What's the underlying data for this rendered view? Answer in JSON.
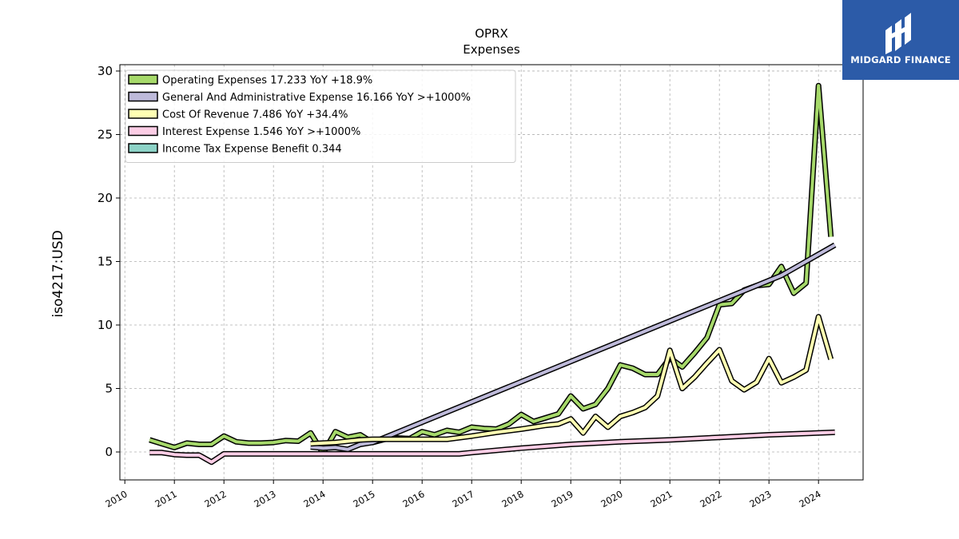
{
  "chart_data": {
    "type": "line",
    "title": "OPRX",
    "subtitle": "Expenses",
    "xlabel": "",
    "ylabel": "iso4217:USD",
    "xlim": [
      2009.9,
      2024.9
    ],
    "ylim": [
      -2.2,
      30.5
    ],
    "yticks": [
      0,
      5,
      10,
      15,
      20,
      25,
      30
    ],
    "xticks": [
      2010,
      2011,
      2012,
      2013,
      2014,
      2015,
      2016,
      2017,
      2018,
      2019,
      2020,
      2021,
      2022,
      2023,
      2024
    ],
    "grid": true,
    "legend_position": "upper-left",
    "series": [
      {
        "name": "Operating Expenses",
        "legend": "Operating Expenses  17.233 YoY +18.9%",
        "color": "#a6d96a",
        "points": [
          [
            2010.5,
            0.95
          ],
          [
            2010.75,
            0.65
          ],
          [
            2011.0,
            0.35
          ],
          [
            2011.25,
            0.7
          ],
          [
            2011.5,
            0.6
          ],
          [
            2011.75,
            0.6
          ],
          [
            2012.0,
            1.25
          ],
          [
            2012.25,
            0.8
          ],
          [
            2012.5,
            0.7
          ],
          [
            2012.75,
            0.7
          ],
          [
            2013.0,
            0.75
          ],
          [
            2013.25,
            0.9
          ],
          [
            2013.5,
            0.85
          ],
          [
            2013.75,
            1.5
          ],
          [
            2014.0,
            -0.1
          ],
          [
            2014.25,
            1.6
          ],
          [
            2014.5,
            1.15
          ],
          [
            2014.75,
            1.35
          ],
          [
            2015.0,
            0.75
          ],
          [
            2015.25,
            1.0
          ],
          [
            2015.5,
            1.1
          ],
          [
            2015.75,
            1.05
          ],
          [
            2016.0,
            1.6
          ],
          [
            2016.25,
            1.35
          ],
          [
            2016.5,
            1.7
          ],
          [
            2016.75,
            1.55
          ],
          [
            2017.0,
            1.95
          ],
          [
            2017.25,
            1.85
          ],
          [
            2017.5,
            1.8
          ],
          [
            2017.75,
            2.2
          ],
          [
            2018.0,
            2.95
          ],
          [
            2018.25,
            2.4
          ],
          [
            2018.5,
            2.7
          ],
          [
            2018.75,
            3.0
          ],
          [
            2019.0,
            4.4
          ],
          [
            2019.25,
            3.4
          ],
          [
            2019.5,
            3.75
          ],
          [
            2019.75,
            5.0
          ],
          [
            2020.0,
            6.85
          ],
          [
            2020.25,
            6.6
          ],
          [
            2020.5,
            6.1
          ],
          [
            2020.75,
            6.1
          ],
          [
            2021.0,
            7.4
          ],
          [
            2021.25,
            6.7
          ],
          [
            2021.5,
            7.8
          ],
          [
            2021.75,
            9.0
          ],
          [
            2022.0,
            11.6
          ],
          [
            2022.25,
            11.7
          ],
          [
            2022.5,
            12.75
          ],
          [
            2022.75,
            13.1
          ],
          [
            2023.0,
            13.2
          ],
          [
            2023.25,
            14.6
          ],
          [
            2023.5,
            12.5
          ],
          [
            2023.75,
            13.3
          ],
          [
            2024.0,
            28.85
          ],
          [
            2024.25,
            16.95
          ]
        ]
      },
      {
        "name": "General And Administrative Expense",
        "legend": "General And Administrative Expense  16.166 YoY >+1000%",
        "color": "#bebada",
        "points": [
          [
            2013.75,
            0.4
          ],
          [
            2014.0,
            0.3
          ],
          [
            2014.25,
            0.35
          ],
          [
            2014.5,
            0.2
          ],
          [
            2014.75,
            0.6
          ],
          [
            2015.0,
            0.75
          ],
          [
            2023.25,
            13.9
          ],
          [
            2024.33,
            16.3
          ]
        ]
      },
      {
        "name": "Cost Of Revenue",
        "legend": "Cost Of Revenue  7.486 YoY +34.4%",
        "color": "#ffffb3",
        "points": [
          [
            2013.75,
            0.65
          ],
          [
            2014.0,
            0.7
          ],
          [
            2014.25,
            0.75
          ],
          [
            2014.5,
            0.85
          ],
          [
            2014.75,
            0.95
          ],
          [
            2015.0,
            1.0
          ],
          [
            2015.5,
            1.0
          ],
          [
            2016.0,
            1.0
          ],
          [
            2016.5,
            1.0
          ],
          [
            2017.0,
            1.25
          ],
          [
            2017.5,
            1.55
          ],
          [
            2018.0,
            1.8
          ],
          [
            2018.25,
            1.95
          ],
          [
            2018.5,
            2.1
          ],
          [
            2018.75,
            2.2
          ],
          [
            2019.0,
            2.6
          ],
          [
            2019.25,
            1.5
          ],
          [
            2019.5,
            2.8
          ],
          [
            2019.75,
            1.95
          ],
          [
            2020.0,
            2.8
          ],
          [
            2020.25,
            3.1
          ],
          [
            2020.5,
            3.5
          ],
          [
            2020.75,
            4.4
          ],
          [
            2021.0,
            8.0
          ],
          [
            2021.25,
            5.0
          ],
          [
            2021.5,
            5.9
          ],
          [
            2021.75,
            7.0
          ],
          [
            2022.0,
            8.05
          ],
          [
            2022.25,
            5.6
          ],
          [
            2022.5,
            4.9
          ],
          [
            2022.75,
            5.5
          ],
          [
            2023.0,
            7.35
          ],
          [
            2023.25,
            5.45
          ],
          [
            2023.5,
            5.9
          ],
          [
            2023.75,
            6.45
          ],
          [
            2024.0,
            10.65
          ],
          [
            2024.25,
            7.3
          ]
        ]
      },
      {
        "name": "Interest Expense",
        "legend": "Interest Expense  1.546 YoY >+1000%",
        "color": "#fccde5",
        "points": [
          [
            2010.5,
            -0.05
          ],
          [
            2010.75,
            -0.05
          ],
          [
            2011.0,
            -0.2
          ],
          [
            2011.25,
            -0.25
          ],
          [
            2011.5,
            -0.25
          ],
          [
            2011.75,
            -0.8
          ],
          [
            2012.0,
            -0.15
          ],
          [
            2012.5,
            -0.15
          ],
          [
            2013.0,
            -0.15
          ],
          [
            2014.0,
            -0.15
          ],
          [
            2015.0,
            -0.15
          ],
          [
            2016.0,
            -0.15
          ],
          [
            2016.75,
            -0.15
          ],
          [
            2017.0,
            -0.05
          ],
          [
            2018.0,
            0.3
          ],
          [
            2019.0,
            0.6
          ],
          [
            2020.0,
            0.8
          ],
          [
            2021.0,
            0.95
          ],
          [
            2022.0,
            1.15
          ],
          [
            2023.0,
            1.35
          ],
          [
            2024.33,
            1.55
          ]
        ]
      },
      {
        "name": "Income Tax Expense Benefit",
        "legend": "Income Tax Expense Benefit  0.344",
        "color": "#8dd3c7",
        "points": []
      }
    ]
  },
  "brand": {
    "name": "MIDGARD FINANCE",
    "color": "#2c5ba8"
  }
}
